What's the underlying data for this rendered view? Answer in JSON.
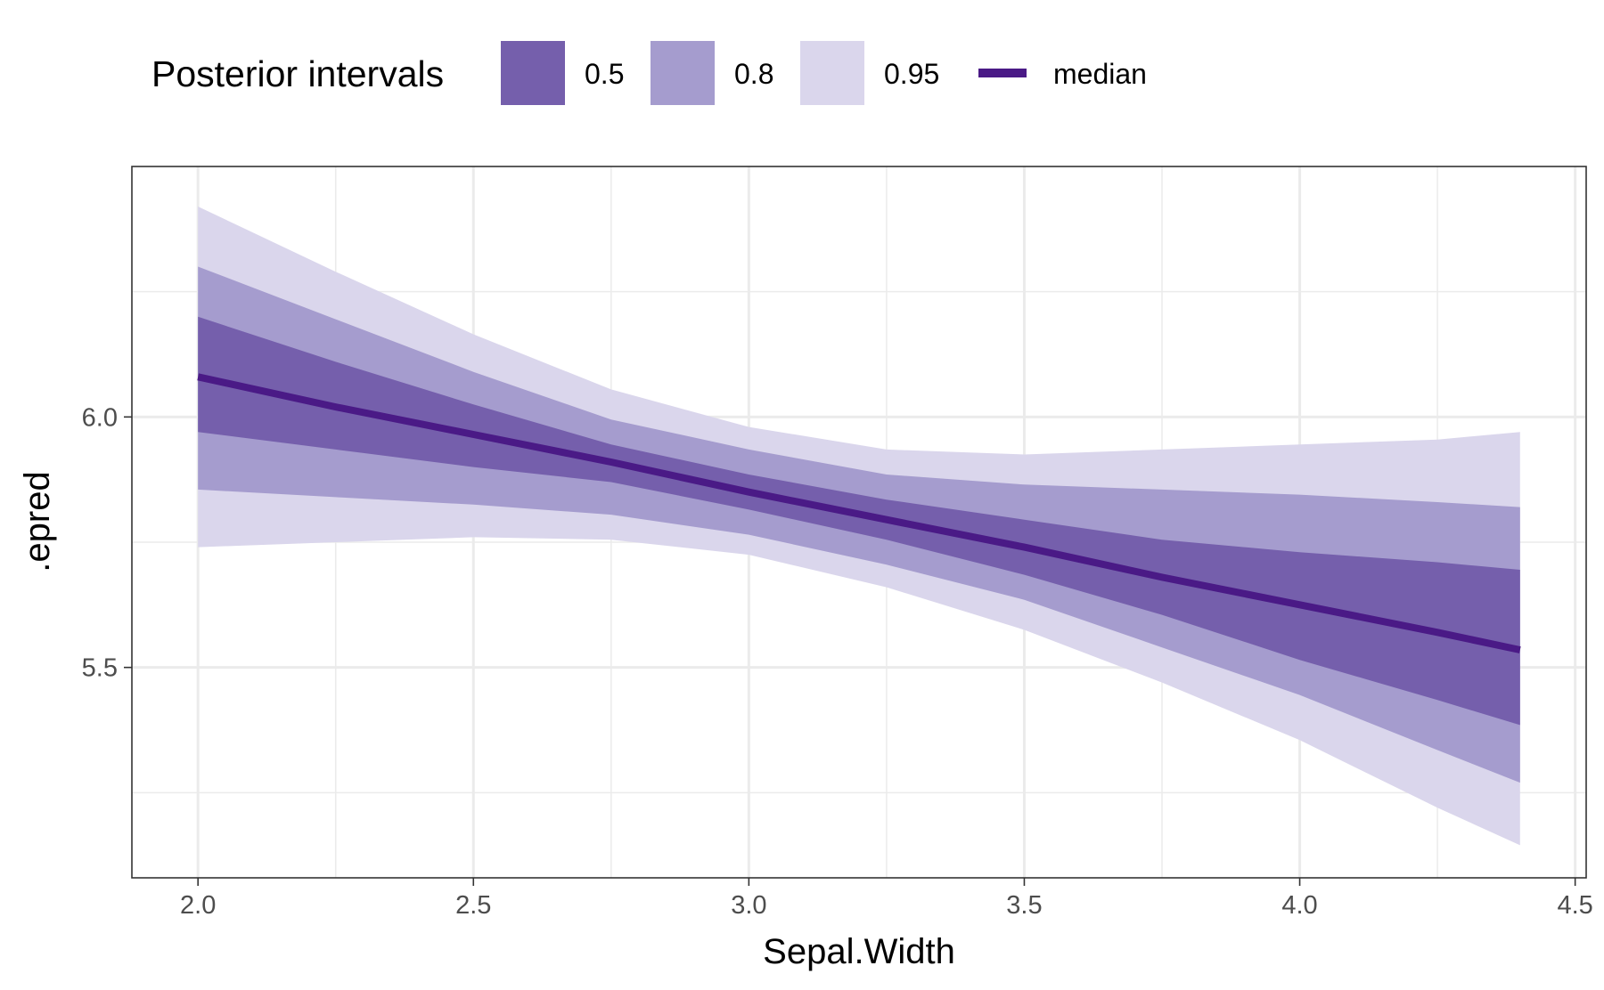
{
  "chart_data": {
    "type": "area",
    "xlabel": "Sepal.Width",
    "ylabel": ".epred",
    "xlim": [
      1.88,
      4.52
    ],
    "ylim": [
      5.08,
      6.5
    ],
    "x_ticks": [
      2.0,
      2.5,
      3.0,
      3.5,
      4.0,
      4.5
    ],
    "x_tick_labels": [
      "2.0",
      "2.5",
      "3.0",
      "3.5",
      "4.0",
      "4.5"
    ],
    "y_ticks": [
      5.5,
      6.0
    ],
    "y_tick_labels": [
      "5.5",
      "6.0"
    ],
    "grid": true,
    "legend": {
      "title": "Posterior intervals",
      "position": "top",
      "entries": [
        {
          "label": "0.5",
          "kind": "band",
          "color": "#755FAC"
        },
        {
          "label": "0.8",
          "kind": "band",
          "color": "#A59CCE"
        },
        {
          "label": "0.95",
          "kind": "band",
          "color": "#DAD6EC"
        },
        {
          "label": "median",
          "kind": "line",
          "color": "#4A1A86"
        }
      ]
    },
    "x": [
      2.0,
      2.25,
      2.5,
      2.75,
      3.0,
      3.25,
      3.5,
      3.75,
      4.0,
      4.25,
      4.4
    ],
    "median": [
      6.08,
      6.02,
      5.965,
      5.91,
      5.85,
      5.795,
      5.74,
      5.68,
      5.625,
      5.57,
      5.535
    ],
    "bands": [
      {
        "level": "0.95",
        "color": "#DAD6EC",
        "lower": [
          5.74,
          5.75,
          5.76,
          5.755,
          5.725,
          5.66,
          5.575,
          5.47,
          5.355,
          5.22,
          5.145
        ],
        "upper": [
          6.42,
          6.29,
          6.165,
          6.055,
          5.98,
          5.935,
          5.925,
          5.935,
          5.945,
          5.955,
          5.97
        ]
      },
      {
        "level": "0.8",
        "color": "#A59CCE",
        "lower": [
          5.855,
          5.84,
          5.825,
          5.805,
          5.765,
          5.705,
          5.635,
          5.54,
          5.445,
          5.335,
          5.27
        ],
        "upper": [
          6.3,
          6.195,
          6.09,
          5.995,
          5.935,
          5.885,
          5.865,
          5.855,
          5.845,
          5.83,
          5.82
        ]
      },
      {
        "level": "0.5",
        "color": "#755FAC",
        "lower": [
          5.97,
          5.935,
          5.9,
          5.87,
          5.815,
          5.755,
          5.685,
          5.605,
          5.515,
          5.435,
          5.385
        ],
        "upper": [
          6.2,
          6.11,
          6.025,
          5.945,
          5.885,
          5.835,
          5.795,
          5.755,
          5.73,
          5.71,
          5.695
        ]
      }
    ]
  }
}
